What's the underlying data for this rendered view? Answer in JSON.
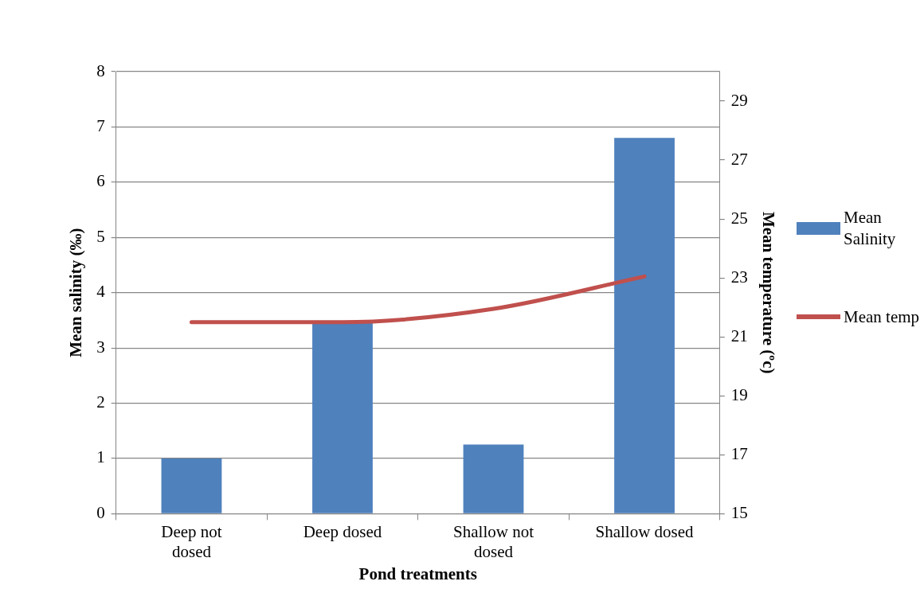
{
  "chart_data": {
    "type": "bar",
    "xlabel": "Pond treatments",
    "ylabel": "Mean salinity (‰)",
    "y2label": "Mean temperature (ºc)",
    "categories": [
      "Deep not dosed",
      "Deep dosed",
      "Shallow not dosed",
      "Shallow dosed"
    ],
    "series": [
      {
        "name": "Mean Salinity",
        "color": "#4f81bd",
        "values": [
          1.0,
          3.45,
          1.25,
          6.8
        ]
      },
      {
        "name": "Mean temp",
        "type": "line",
        "axis": "y2",
        "color": "#c0504d",
        "values": [
          21.5,
          21.5,
          21.95,
          23.05
        ],
        "marker": "none"
      }
    ],
    "ylim": [
      0,
      8
    ],
    "yticks": [
      0,
      1,
      2,
      3,
      4,
      5,
      6,
      7,
      8
    ],
    "y2lim": [
      15,
      30
    ],
    "y2ticks": [
      15,
      17,
      19,
      21,
      23,
      25,
      27,
      29
    ],
    "grid": "y",
    "legend": "right"
  }
}
